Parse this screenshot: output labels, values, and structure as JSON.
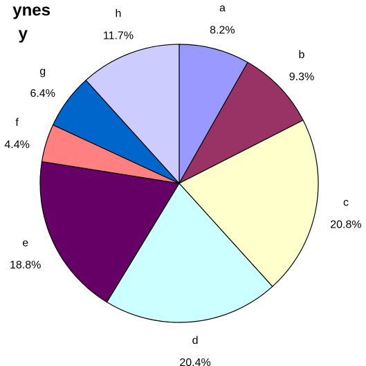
{
  "chart_data": {
    "type": "pie",
    "title": [
      "ynes",
      "y"
    ],
    "categories": [
      "a",
      "b",
      "c",
      "d",
      "e",
      "f",
      "g",
      "h"
    ],
    "values": [
      8.2,
      9.3,
      20.8,
      20.4,
      18.8,
      4.4,
      6.4,
      11.7
    ],
    "value_labels": [
      "8.2%",
      "9.3%",
      "20.8%",
      "20.4%",
      "18.8%",
      "4.4%",
      "6.4%",
      "11.7%"
    ],
    "colors": [
      "#9999ff",
      "#993366",
      "#ffffcc",
      "#ccffff",
      "#660066",
      "#ff8080",
      "#0066cc",
      "#ccccff"
    ]
  }
}
